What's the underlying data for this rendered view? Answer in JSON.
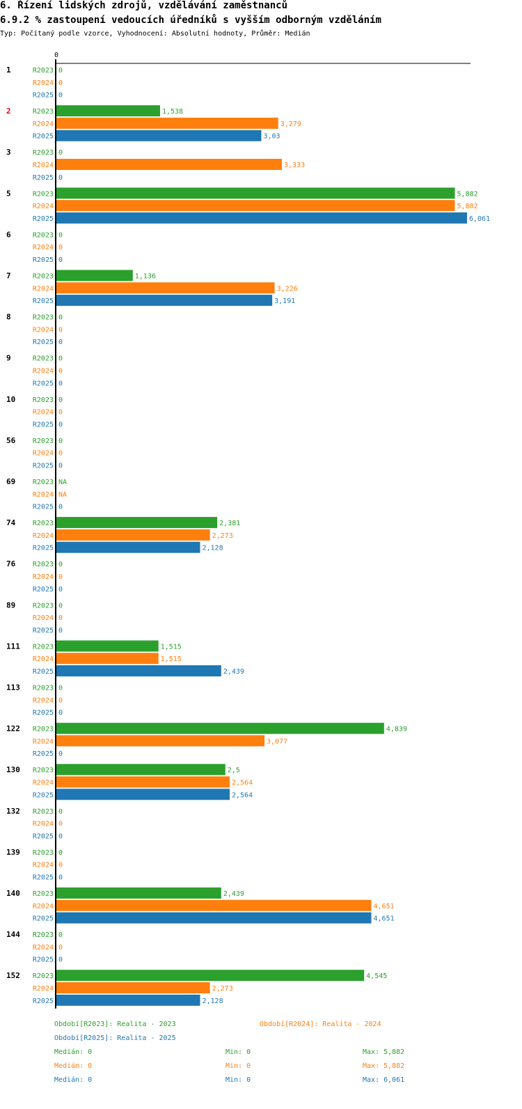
{
  "header": {
    "title": "6. Řízení lidských zdrojů, vzdělávání zaměstnanců",
    "subtitle": "6.9.2 % zastoupení vedoucích úředníků s vyšším odborným vzděláním",
    "meta": "Typ: Počítaný podle vzorce, Vyhodnocení: Absolutní hodnoty, Průměr: Medián"
  },
  "chart_data": {
    "type": "bar",
    "orientation": "horizontal",
    "axis_zero_label": "0",
    "xlim": [
      0,
      6.061
    ],
    "colors": {
      "R2023": "#2ca02c",
      "R2024": "#ff7f0e",
      "R2025": "#1f77b4",
      "highlight": "#ff0000"
    },
    "series_names": [
      "R2023",
      "R2024",
      "R2025"
    ],
    "groups": [
      {
        "label": "1",
        "highlight": false,
        "values": [
          0,
          0,
          0
        ],
        "labels": [
          "0",
          "0",
          "0"
        ]
      },
      {
        "label": "2",
        "highlight": true,
        "values": [
          1.538,
          3.279,
          3.03
        ],
        "labels": [
          "1,538",
          "3,279",
          "3,03"
        ]
      },
      {
        "label": "3",
        "highlight": false,
        "values": [
          0,
          3.333,
          0
        ],
        "labels": [
          "0",
          "3,333",
          "0"
        ]
      },
      {
        "label": "5",
        "highlight": false,
        "values": [
          5.882,
          5.882,
          6.061
        ],
        "labels": [
          "5,882",
          "5,882",
          "6,061"
        ]
      },
      {
        "label": "6",
        "highlight": false,
        "values": [
          0,
          0,
          0
        ],
        "labels": [
          "0",
          "0",
          "0"
        ]
      },
      {
        "label": "7",
        "highlight": false,
        "values": [
          1.136,
          3.226,
          3.191
        ],
        "labels": [
          "1,136",
          "3,226",
          "3,191"
        ]
      },
      {
        "label": "8",
        "highlight": false,
        "values": [
          0,
          0,
          0
        ],
        "labels": [
          "0",
          "0",
          "0"
        ]
      },
      {
        "label": "9",
        "highlight": false,
        "values": [
          0,
          0,
          0
        ],
        "labels": [
          "0",
          "0",
          "0"
        ]
      },
      {
        "label": "10",
        "highlight": false,
        "values": [
          0,
          0,
          0
        ],
        "labels": [
          "0",
          "0",
          "0"
        ]
      },
      {
        "label": "56",
        "highlight": false,
        "values": [
          0,
          0,
          0
        ],
        "labels": [
          "0",
          "0",
          "0"
        ]
      },
      {
        "label": "69",
        "highlight": false,
        "values": [
          null,
          null,
          0
        ],
        "labels": [
          "NA",
          "NA",
          "0"
        ]
      },
      {
        "label": "74",
        "highlight": false,
        "values": [
          2.381,
          2.273,
          2.128
        ],
        "labels": [
          "2,381",
          "2,273",
          "2,128"
        ]
      },
      {
        "label": "76",
        "highlight": false,
        "values": [
          0,
          0,
          0
        ],
        "labels": [
          "0",
          "0",
          "0"
        ]
      },
      {
        "label": "89",
        "highlight": false,
        "values": [
          0,
          0,
          0
        ],
        "labels": [
          "0",
          "0",
          "0"
        ]
      },
      {
        "label": "111",
        "highlight": false,
        "values": [
          1.515,
          1.515,
          2.439
        ],
        "labels": [
          "1,515",
          "1,515",
          "2,439"
        ]
      },
      {
        "label": "113",
        "highlight": false,
        "values": [
          0,
          0,
          0
        ],
        "labels": [
          "0",
          "0",
          "0"
        ]
      },
      {
        "label": "122",
        "highlight": false,
        "values": [
          4.839,
          3.077,
          0
        ],
        "labels": [
          "4,839",
          "3,077",
          "0"
        ]
      },
      {
        "label": "130",
        "highlight": false,
        "values": [
          2.5,
          2.564,
          2.564
        ],
        "labels": [
          "2,5",
          "2,564",
          "2,564"
        ]
      },
      {
        "label": "132",
        "highlight": false,
        "values": [
          0,
          0,
          0
        ],
        "labels": [
          "0",
          "0",
          "0"
        ]
      },
      {
        "label": "139",
        "highlight": false,
        "values": [
          0,
          0,
          0
        ],
        "labels": [
          "0",
          "0",
          "0"
        ]
      },
      {
        "label": "140",
        "highlight": false,
        "values": [
          2.439,
          4.651,
          4.651
        ],
        "labels": [
          "2,439",
          "4,651",
          "4,651"
        ]
      },
      {
        "label": "144",
        "highlight": false,
        "values": [
          0,
          0,
          0
        ],
        "labels": [
          "0",
          "0",
          "0"
        ]
      },
      {
        "label": "152",
        "highlight": false,
        "values": [
          4.545,
          2.273,
          2.128
        ],
        "labels": [
          "4,545",
          "2,273",
          "2,128"
        ]
      }
    ],
    "legend": {
      "entries": [
        "Období[R2023]: Realita - 2023",
        "Období[R2024]: Realita - 2024",
        "Období[R2025]: Realita - 2025"
      ],
      "stats": [
        {
          "median": "Medián: 0",
          "min": "Min: 0",
          "max": "Max: 5,882"
        },
        {
          "median": "Medián: 0",
          "min": "Min: 0",
          "max": "Max: 5,882"
        },
        {
          "median": "Medián: 0",
          "min": "Min: 0",
          "max": "Max: 6,061"
        }
      ]
    }
  }
}
